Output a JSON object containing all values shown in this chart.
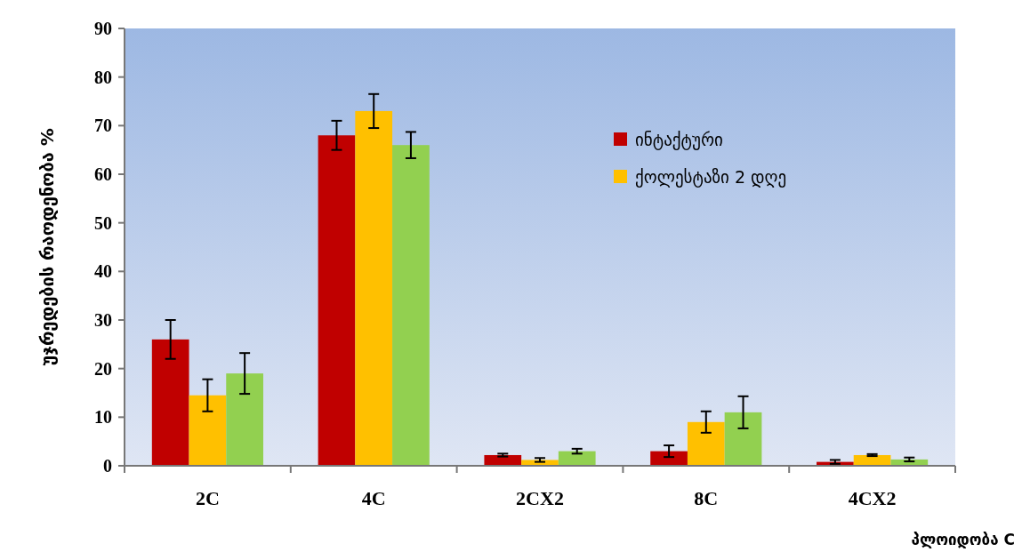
{
  "chart_data": {
    "type": "bar",
    "ylabel": "უჯრედების რაოდენობა %",
    "xlabel": "პლოიდობა C",
    "categories": [
      "2C",
      "4C",
      "2CX2",
      "8C",
      "4CX2"
    ],
    "series": [
      {
        "name": "ინტაქტური",
        "color": "#c00000",
        "values": [
          26,
          68,
          2.2,
          3,
          0.8
        ],
        "errors": [
          4,
          3,
          0.3,
          1.2,
          0.4
        ]
      },
      {
        "name": "ქოლესტაზი 2 დღე",
        "color": "#ffc000",
        "values": [
          14.5,
          73,
          1.2,
          9,
          2.2
        ],
        "errors": [
          3.3,
          3.5,
          0.4,
          2.2,
          0.2
        ]
      },
      {
        "color": "#92d050",
        "values": [
          19,
          66,
          3,
          11,
          1.3
        ],
        "errors": [
          4.2,
          2.7,
          0.5,
          3.3,
          0.4
        ]
      }
    ],
    "ylim": [
      0,
      90
    ],
    "yticks": [
      0,
      10,
      20,
      30,
      40,
      50,
      60,
      70,
      80,
      90
    ],
    "legend": "top right"
  }
}
